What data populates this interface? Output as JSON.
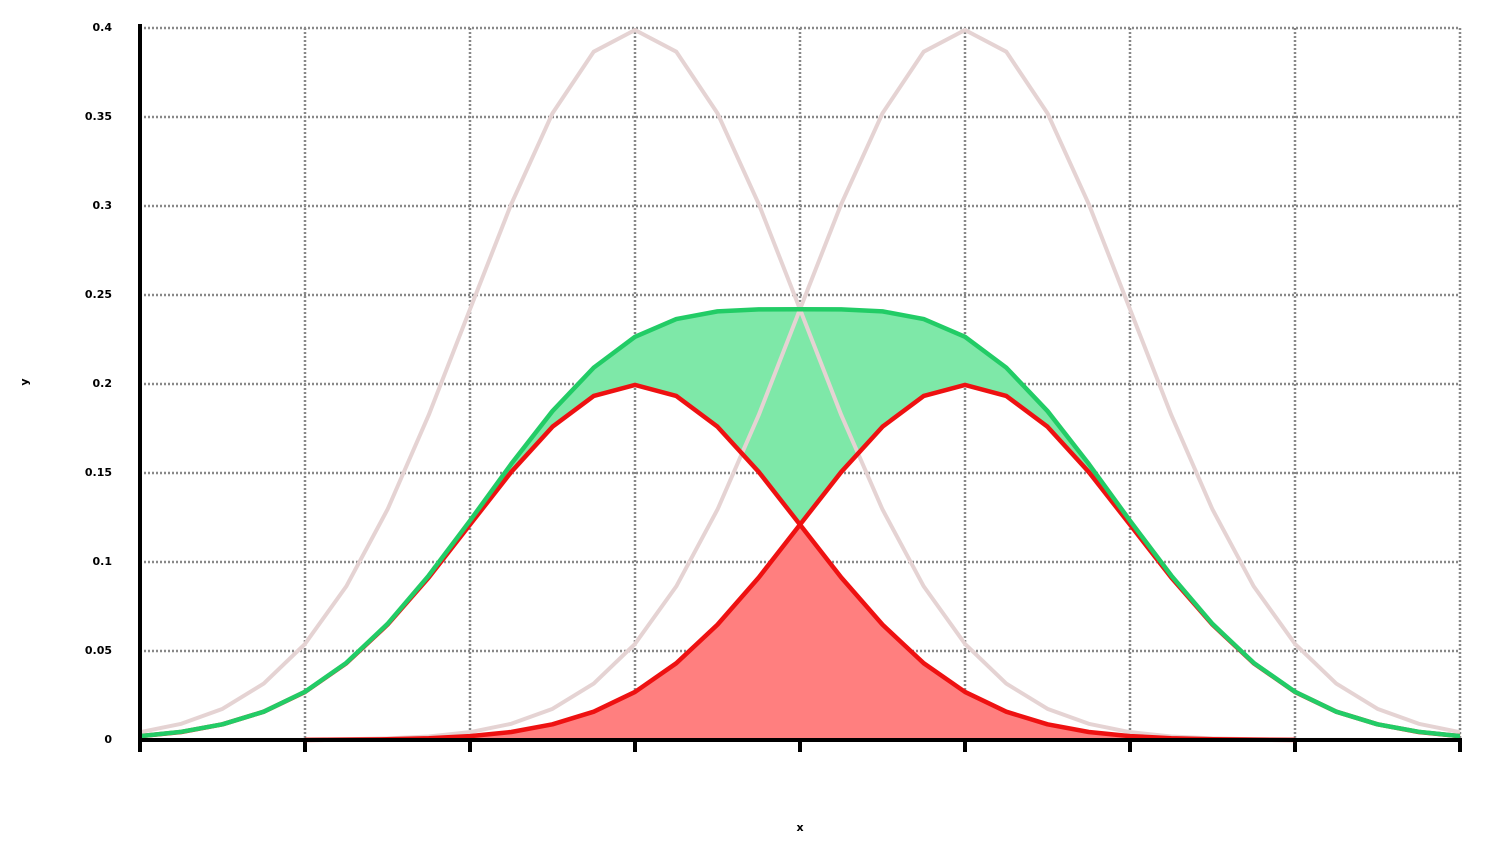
{
  "chart_data": {
    "type": "line",
    "x_label": "x",
    "y_label": "y",
    "x": [
      -4,
      -3.75,
      -3.5,
      -3.25,
      -3,
      -2.75,
      -2.5,
      -2.25,
      -2,
      -1.75,
      -1.5,
      -1.25,
      -1,
      -0.75,
      -0.5,
      -0.25,
      0,
      0.25,
      0.5,
      0.75,
      1,
      1.25,
      1.5,
      1.75,
      2,
      2.25,
      2.5,
      2.75,
      3,
      3.25,
      3.5,
      3.75,
      4
    ],
    "series": [
      {
        "color": "#e5d3d3",
        "values": [
          0.0044,
          0.0091,
          0.0175,
          0.0317,
          0.054,
          0.0863,
          0.1295,
          0.1826,
          0.242,
          0.3011,
          0.3521,
          0.3867,
          0.3989,
          0.3867,
          0.3521,
          0.3011,
          0.242,
          0.1826,
          0.1295,
          0.0863,
          0.054,
          0.0317,
          0.0175,
          0.0091,
          0.0044,
          0.002,
          0.0009,
          0.0004,
          0.0001,
          0.0001,
          0,
          0,
          0
        ]
      },
      {
        "color": "#e5d3d3",
        "values": [
          0,
          0,
          0,
          0.0001,
          0.0001,
          0.0004,
          0.0009,
          0.002,
          0.0044,
          0.0091,
          0.0175,
          0.0317,
          0.054,
          0.0863,
          0.1295,
          0.1826,
          0.242,
          0.3011,
          0.3521,
          0.3867,
          0.3989,
          0.3867,
          0.3521,
          0.3011,
          0.242,
          0.1826,
          0.1295,
          0.0863,
          0.054,
          0.0317,
          0.0175,
          0.0091,
          0.0044
        ]
      },
      {
        "color": "#ee1111",
        "values": [
          0.0022,
          0.0045,
          0.0088,
          0.0159,
          0.027,
          0.0431,
          0.0648,
          0.0913,
          0.121,
          0.1506,
          0.176,
          0.1933,
          0.1995,
          0.1933,
          0.176,
          0.1506,
          0.121,
          0.0913,
          0.0648,
          0.0431,
          0.027,
          0.0159,
          0.0088,
          0.0045,
          0.0022,
          0.001,
          0.0004,
          0.0002,
          0.0001,
          null,
          null,
          null,
          null
        ]
      },
      {
        "color": "#ee1111",
        "values": [
          null,
          null,
          null,
          null,
          0.0001,
          0.0002,
          0.0004,
          0.001,
          0.0022,
          0.0045,
          0.0088,
          0.0159,
          0.027,
          0.0431,
          0.0648,
          0.0913,
          0.121,
          0.1506,
          0.176,
          0.1933,
          0.1995,
          0.1933,
          0.176,
          0.1506,
          0.121,
          0.0913,
          0.0648,
          0.0431,
          0.027,
          0.0159,
          0.0088,
          0.0045,
          0.0022
        ]
      },
      {
        "color": "#22cc66",
        "values": [
          0.0022,
          0.0046,
          0.0088,
          0.0159,
          0.0271,
          0.0433,
          0.0652,
          0.0924,
          0.1232,
          0.1551,
          0.1848,
          0.2092,
          0.2265,
          0.2365,
          0.2408,
          0.2419,
          0.242,
          0.2419,
          0.2408,
          0.2365,
          0.2265,
          0.2092,
          0.1848,
          0.1551,
          0.1232,
          0.0924,
          0.0652,
          0.0433,
          0.0271,
          0.0159,
          0.0088,
          0.0046,
          0.0022
        ]
      }
    ],
    "overlap_color": "#ff7f7f",
    "gap_color": "#7ee8a8",
    "xlim": [
      -4,
      4
    ],
    "xticks": [
      -4,
      -3,
      -2,
      -1,
      0,
      1,
      2,
      3,
      4
    ],
    "xtick_labels": false,
    "ylim": [
      0,
      0.4
    ],
    "yticks": [
      0,
      0.05,
      0.1,
      0.15,
      0.2,
      0.25,
      0.3,
      0.35,
      0.4
    ],
    "grid": true
  }
}
